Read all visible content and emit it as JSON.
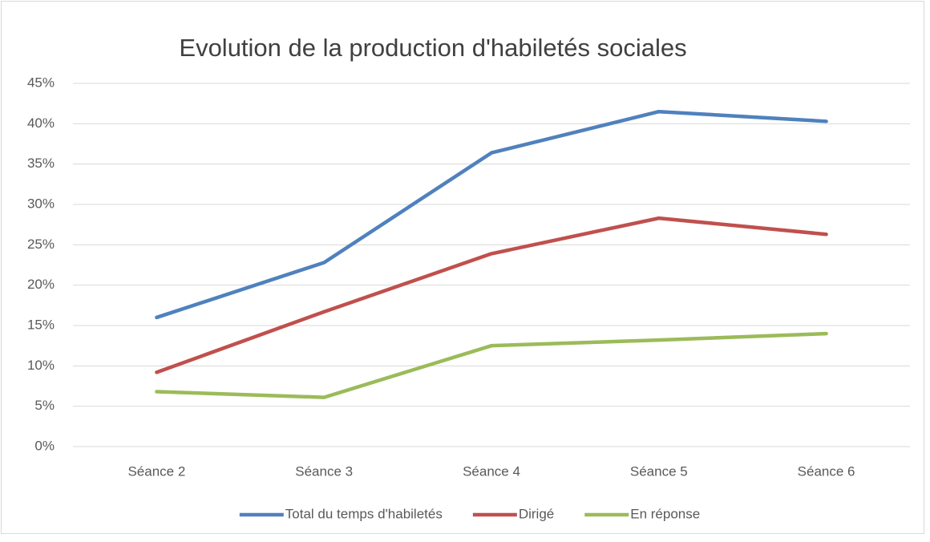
{
  "chart_data": {
    "type": "line",
    "title": "Evolution de la production d'habiletés sociales",
    "categories": [
      "Séance 2",
      "Séance 3",
      "Séance 4",
      "Séance 5",
      "Séance 6"
    ],
    "series": [
      {
        "name": "Total du temps d'habiletés",
        "color": "#4f81bd",
        "values": [
          16.0,
          22.8,
          36.4,
          41.5,
          40.3
        ]
      },
      {
        "name": "Dirigé",
        "color": "#c0504d",
        "values": [
          9.2,
          16.7,
          23.9,
          28.3,
          26.3
        ]
      },
      {
        "name": "En réponse",
        "color": "#9bbb59",
        "values": [
          6.8,
          6.1,
          12.5,
          13.2,
          14.0
        ]
      }
    ],
    "ylim": [
      0,
      45
    ],
    "yticks": [
      {
        "value": 0,
        "label": "0%"
      },
      {
        "value": 5,
        "label": "5%"
      },
      {
        "value": 10,
        "label": "10%"
      },
      {
        "value": 15,
        "label": "15%"
      },
      {
        "value": 20,
        "label": "20%"
      },
      {
        "value": 25,
        "label": "25%"
      },
      {
        "value": 30,
        "label": "30%"
      },
      {
        "value": 35,
        "label": "35%"
      },
      {
        "value": 40,
        "label": "40%"
      },
      {
        "value": 45,
        "label": "45%"
      }
    ],
    "grid": true,
    "legend": "bottom"
  }
}
